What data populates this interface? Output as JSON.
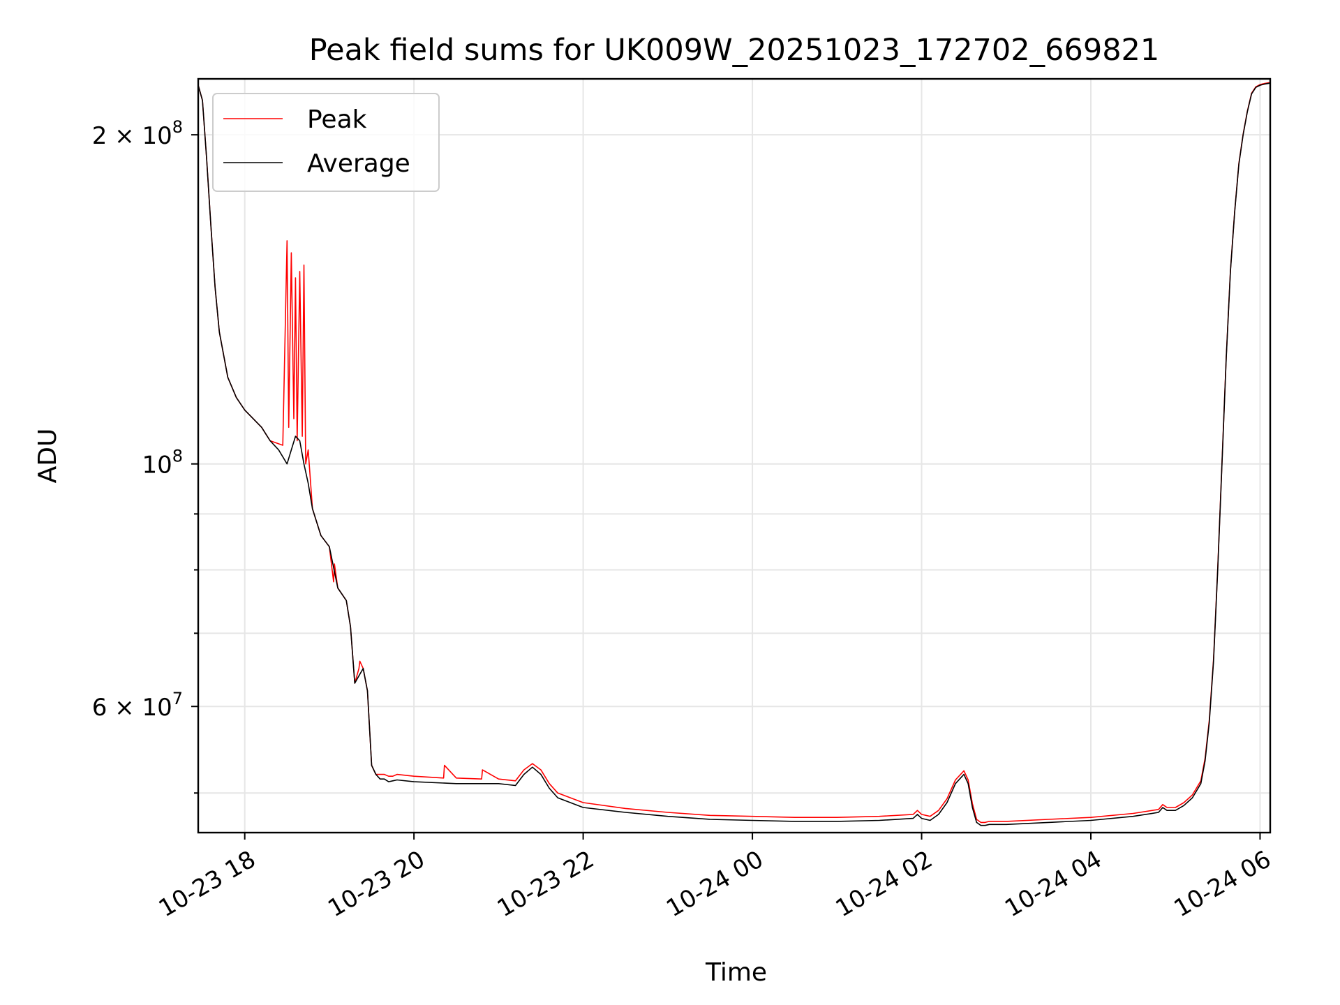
{
  "chart_data": {
    "type": "line",
    "title": "Peak field sums for UK009W_20251023_172702_669821",
    "xlabel": "Time",
    "ylabel": "ADU",
    "yscale": "log",
    "grid": true,
    "legend_position": "top-left",
    "xlim": [
      17.45,
      30.12
    ],
    "ylim": [
      46000000,
      225000000
    ],
    "x_ticks": [
      {
        "value": 18,
        "label": "10-23 18"
      },
      {
        "value": 20,
        "label": "10-23 20"
      },
      {
        "value": 22,
        "label": "10-23 22"
      },
      {
        "value": 24,
        "label": "10-24 00"
      },
      {
        "value": 26,
        "label": "10-24 02"
      },
      {
        "value": 28,
        "label": "10-24 04"
      },
      {
        "value": 30,
        "label": "10-24 06"
      }
    ],
    "y_major_ticks": [
      {
        "value": 60000000,
        "label": "6 × 10⁷",
        "mantissa": "6 × 10",
        "exp": "7"
      },
      {
        "value": 100000000,
        "label": "10⁸",
        "mantissa": "10",
        "exp": "8"
      },
      {
        "value": 200000000,
        "label": "2 × 10⁸",
        "mantissa": "2 × 10",
        "exp": "8"
      }
    ],
    "y_minor_ticks": [
      50000000,
      70000000,
      80000000,
      90000000
    ],
    "x_unit_note": "hours since 10-23 00:00",
    "series": [
      {
        "name": "Average",
        "color": "#000000",
        "x": [
          17.45,
          17.5,
          17.55,
          17.6,
          17.65,
          17.7,
          17.8,
          17.9,
          18.0,
          18.1,
          18.2,
          18.3,
          18.4,
          18.5,
          18.55,
          18.6,
          18.65,
          18.7,
          18.75,
          18.8,
          18.9,
          19.0,
          19.1,
          19.2,
          19.25,
          19.3,
          19.35,
          19.4,
          19.45,
          19.5,
          19.55,
          19.6,
          19.65,
          19.7,
          19.75,
          19.8,
          20.0,
          20.5,
          21.0,
          21.2,
          21.3,
          21.4,
          21.5,
          21.6,
          21.7,
          22.0,
          22.5,
          23.0,
          23.5,
          24.0,
          24.5,
          25.0,
          25.5,
          25.9,
          25.95,
          26.0,
          26.1,
          26.2,
          26.3,
          26.4,
          26.5,
          26.55,
          26.6,
          26.65,
          26.7,
          26.75,
          26.8,
          27.0,
          27.5,
          28.0,
          28.5,
          28.8,
          28.85,
          28.9,
          29.0,
          29.1,
          29.2,
          29.3,
          29.35,
          29.4,
          29.45,
          29.5,
          29.55,
          29.6,
          29.65,
          29.7,
          29.75,
          29.8,
          29.85,
          29.9,
          29.95,
          30.0,
          30.05,
          30.12
        ],
        "values": [
          222000000,
          215000000,
          190000000,
          165000000,
          145000000,
          132000000,
          120000000,
          115000000,
          112000000,
          110000000,
          108000000,
          105000000,
          103000000,
          100000000,
          103000000,
          106000000,
          105000000,
          100000000,
          96000000,
          91000000,
          86000000,
          84000000,
          77000000,
          75000000,
          71000000,
          63000000,
          64000000,
          65000000,
          62000000,
          53000000,
          52000000,
          51500000,
          51500000,
          51200000,
          51300000,
          51400000,
          51200000,
          51000000,
          51000000,
          50800000,
          52000000,
          52800000,
          52000000,
          50500000,
          49500000,
          48500000,
          48000000,
          47600000,
          47300000,
          47200000,
          47100000,
          47100000,
          47200000,
          47400000,
          47800000,
          47400000,
          47200000,
          47800000,
          49000000,
          51000000,
          52000000,
          51000000,
          48500000,
          47000000,
          46700000,
          46700000,
          46800000,
          46800000,
          47000000,
          47200000,
          47600000,
          48000000,
          48500000,
          48200000,
          48200000,
          48700000,
          49500000,
          51000000,
          53500000,
          58000000,
          66000000,
          80000000,
          100000000,
          125000000,
          150000000,
          170000000,
          188000000,
          200000000,
          210000000,
          218000000,
          221000000,
          222000000,
          222500000,
          223000000
        ]
      },
      {
        "name": "Peak",
        "color": "#ff0000",
        "x": [
          17.45,
          17.5,
          17.55,
          17.6,
          17.65,
          17.7,
          17.8,
          17.9,
          18.0,
          18.1,
          18.2,
          18.3,
          18.45,
          18.5,
          18.52,
          18.55,
          18.58,
          18.6,
          18.62,
          18.65,
          18.68,
          18.7,
          18.72,
          18.75,
          18.8,
          18.9,
          19.0,
          19.05,
          19.06,
          19.1,
          19.2,
          19.25,
          19.3,
          19.35,
          19.36,
          19.4,
          19.45,
          19.5,
          19.55,
          19.6,
          19.65,
          19.7,
          19.75,
          19.8,
          20.0,
          20.35,
          20.36,
          20.5,
          20.8,
          20.81,
          21.0,
          21.2,
          21.3,
          21.4,
          21.5,
          21.6,
          21.7,
          22.0,
          22.5,
          23.0,
          23.5,
          24.0,
          24.5,
          25.0,
          25.5,
          25.9,
          25.95,
          26.0,
          26.1,
          26.2,
          26.3,
          26.4,
          26.5,
          26.55,
          26.6,
          26.65,
          26.7,
          26.75,
          26.8,
          27.0,
          27.5,
          28.0,
          28.5,
          28.8,
          28.85,
          28.9,
          29.0,
          29.1,
          29.2,
          29.3,
          29.35,
          29.4,
          29.45,
          29.5,
          29.55,
          29.6,
          29.65,
          29.7,
          29.75,
          29.8,
          29.85,
          29.9,
          29.95,
          30.0,
          30.05,
          30.12
        ],
        "values": [
          222000000,
          215000000,
          190000000,
          165000000,
          145000000,
          132000000,
          120000000,
          115000000,
          112000000,
          110000000,
          108000000,
          105000000,
          104000000,
          160000000,
          108000000,
          156000000,
          110000000,
          148000000,
          105000000,
          150000000,
          106000000,
          152000000,
          100000000,
          103000000,
          91000000,
          86000000,
          84000000,
          78000000,
          81000000,
          77000000,
          75000000,
          71000000,
          63000000,
          65000000,
          66000000,
          65000000,
          62000000,
          53000000,
          52000000,
          52000000,
          52000000,
          51800000,
          51800000,
          52000000,
          51800000,
          51600000,
          53000000,
          51600000,
          51500000,
          52500000,
          51500000,
          51300000,
          52500000,
          53200000,
          52500000,
          51000000,
          50000000,
          49000000,
          48400000,
          48000000,
          47700000,
          47600000,
          47500000,
          47500000,
          47600000,
          47800000,
          48200000,
          47800000,
          47600000,
          48200000,
          49400000,
          51400000,
          52400000,
          51400000,
          48900000,
          47300000,
          47000000,
          47000000,
          47100000,
          47100000,
          47300000,
          47500000,
          47900000,
          48300000,
          48800000,
          48500000,
          48500000,
          49000000,
          49800000,
          51300000,
          53800000,
          58300000,
          66300000,
          80300000,
          100300000,
          125300000,
          150300000,
          170300000,
          188300000,
          200300000,
          210300000,
          218300000,
          221300000,
          222300000,
          222800000,
          223300000
        ]
      }
    ]
  }
}
